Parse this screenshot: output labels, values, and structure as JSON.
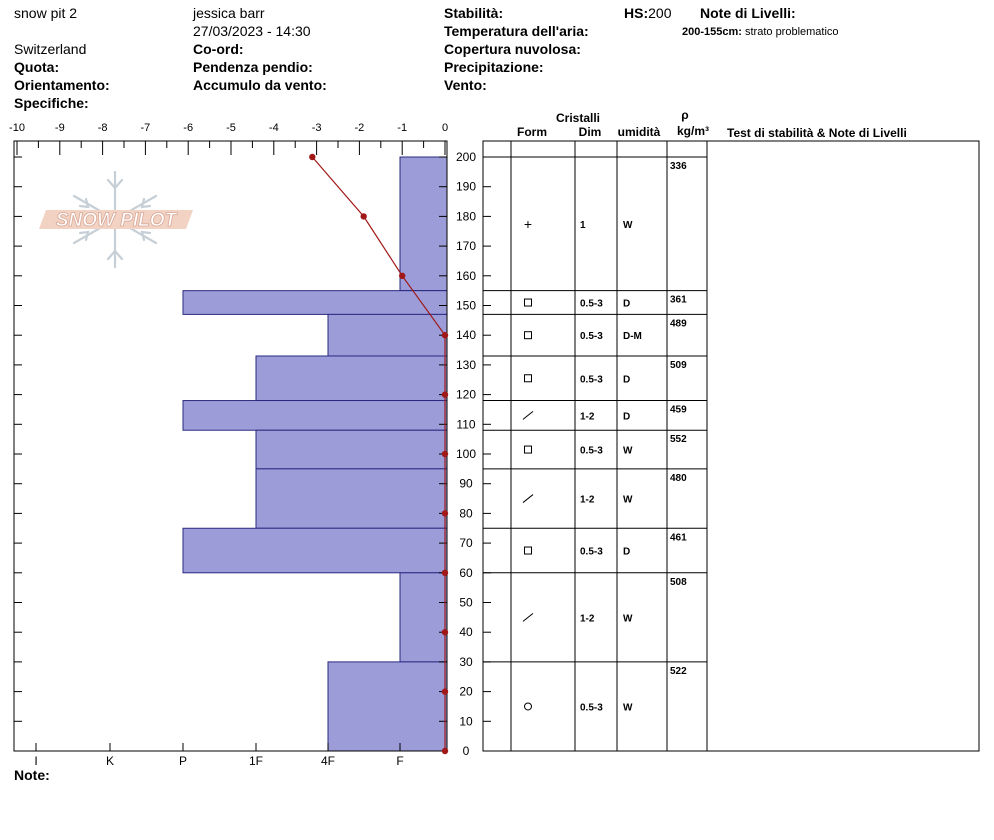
{
  "header": {
    "pit_name": "snow pit 2",
    "observer": "jessica barr",
    "datetime": "27/03/2023 - 14:30",
    "location": "Switzerland",
    "quota_label": "Quota:",
    "orientamento_label": "Orientamento:",
    "specifiche_label": "Specifiche:",
    "coord_label": "Co-ord:",
    "pendenza_label": "Pendenza pendio:",
    "accumulo_label": "Accumulo da vento:",
    "stabilita_label": "Stabilità:",
    "temperatura_label": "Temperatura dell'aria:",
    "copertura_label": "Copertura nuvolosa:",
    "precipitazione_label": "Precipitazione:",
    "vento_label": "Vento:",
    "hs_label": "HS:",
    "hs_value": "200",
    "note_livelli_label": "Note di Livelli:",
    "layer_note_range": "200-155cm:",
    "layer_note_text": "strato problematico",
    "note_label": "Note:"
  },
  "logo": {
    "text": "SNOW PILOT"
  },
  "colors": {
    "hardness_fill": "#9c9cd8",
    "hardness_stroke": "#2a2a80",
    "temp_line": "#a01818"
  },
  "table_headers": {
    "cristalli": "Cristalli",
    "form": "Form",
    "dim": "Dim",
    "umidita": "umidità",
    "rho": "ρ",
    "density_unit": "kg/m³",
    "test": "Test di stabilità & Note di Livelli"
  },
  "chart_data": {
    "type": "snow_profile",
    "temperature_axis": {
      "min": -10,
      "max": 0,
      "ticks": [
        "-10",
        "-9",
        "-8",
        "-7",
        "-6",
        "-5",
        "-4",
        "-3",
        "-2",
        "-1",
        "0"
      ]
    },
    "height_axis": {
      "min": 0,
      "max": 200,
      "ticks": [
        "0",
        "10",
        "20",
        "30",
        "40",
        "50",
        "60",
        "70",
        "80",
        "90",
        "100",
        "110",
        "120",
        "130",
        "140",
        "150",
        "160",
        "170",
        "180",
        "190",
        "200"
      ]
    },
    "hardness_axis": {
      "levels": [
        "I",
        "K",
        "P",
        "1F",
        "4F",
        "F"
      ]
    },
    "temperature_profile": [
      {
        "height": 200,
        "temp": -3.1
      },
      {
        "height": 180,
        "temp": -1.9
      },
      {
        "height": 160,
        "temp": -1.0
      },
      {
        "height": 140,
        "temp": 0
      },
      {
        "height": 120,
        "temp": 0
      },
      {
        "height": 100,
        "temp": 0
      },
      {
        "height": 80,
        "temp": 0
      },
      {
        "height": 60,
        "temp": 0
      },
      {
        "height": 40,
        "temp": 0
      },
      {
        "height": 20,
        "temp": 0
      },
      {
        "height": 0,
        "temp": 0
      }
    ],
    "layers": [
      {
        "top": 200,
        "bottom": 155,
        "hardness": "F",
        "form": "+",
        "dim": "1",
        "wetness": "W",
        "density": "336"
      },
      {
        "top": 155,
        "bottom": 147,
        "hardness": "P",
        "form": "□",
        "dim": "0.5-3",
        "wetness": "D",
        "density": "361"
      },
      {
        "top": 147,
        "bottom": 133,
        "hardness": "4F",
        "form": "□",
        "dim": "0.5-3",
        "wetness": "D-M",
        "density": "489"
      },
      {
        "top": 133,
        "bottom": 118,
        "hardness": "1F",
        "form": "□",
        "dim": "0.5-3",
        "wetness": "D",
        "density": "509"
      },
      {
        "top": 118,
        "bottom": 108,
        "hardness": "P",
        "form": "/",
        "dim": "1-2",
        "wetness": "D",
        "density": "459"
      },
      {
        "top": 108,
        "bottom": 95,
        "hardness": "1F",
        "form": "□",
        "dim": "0.5-3",
        "wetness": "W",
        "density": "552"
      },
      {
        "top": 95,
        "bottom": 75,
        "hardness": "1F",
        "form": "/",
        "dim": "1-2",
        "wetness": "W",
        "density": "480"
      },
      {
        "top": 75,
        "bottom": 60,
        "hardness": "P",
        "form": "□",
        "dim": "0.5-3",
        "wetness": "D",
        "density": "461"
      },
      {
        "top": 60,
        "bottom": 30,
        "hardness": "F",
        "form": "/",
        "dim": "1-2",
        "wetness": "W",
        "density": "508"
      },
      {
        "top": 30,
        "bottom": 0,
        "hardness": "4F",
        "form": "○",
        "dim": "0.5-3",
        "wetness": "W",
        "density": "522"
      }
    ]
  }
}
